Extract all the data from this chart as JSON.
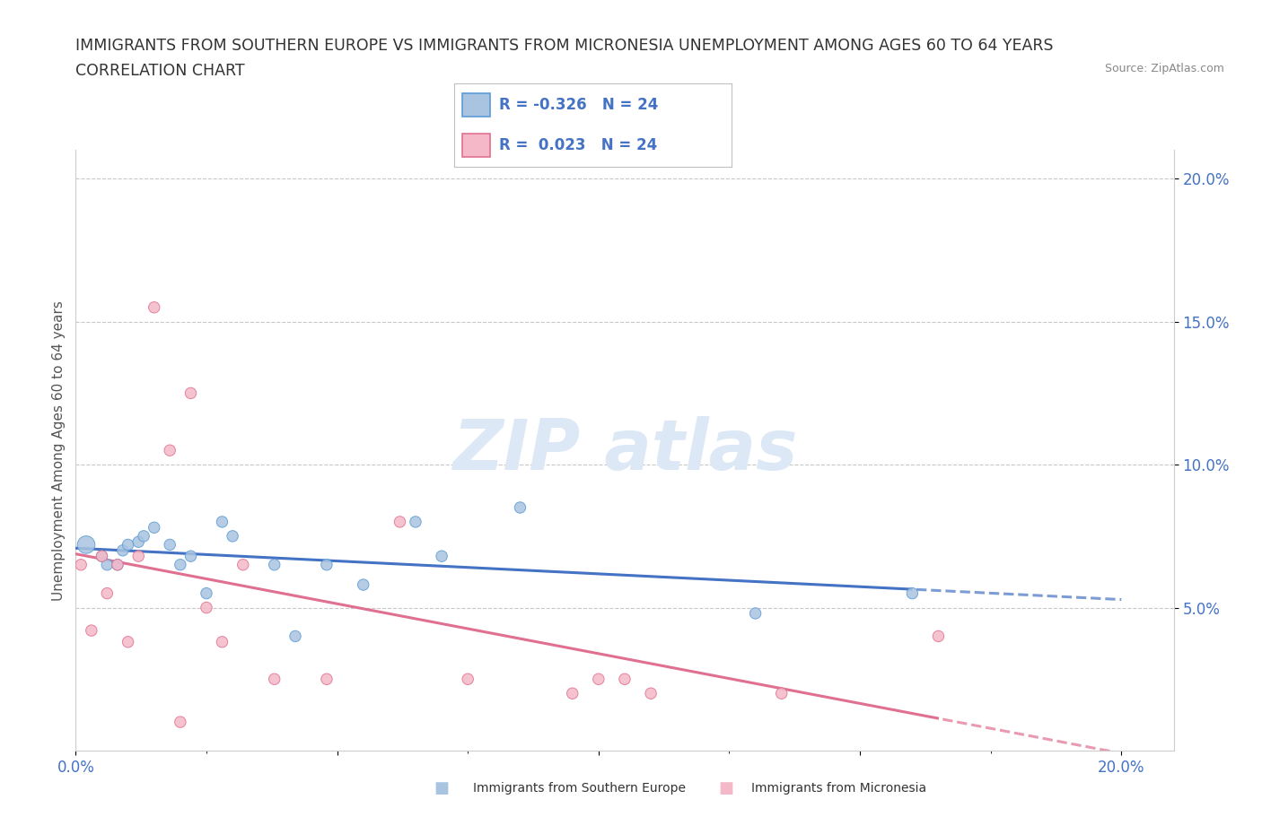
{
  "title_line1": "IMMIGRANTS FROM SOUTHERN EUROPE VS IMMIGRANTS FROM MICRONESIA UNEMPLOYMENT AMONG AGES 60 TO 64 YEARS",
  "title_line2": "CORRELATION CHART",
  "source_text": "Source: ZipAtlas.com",
  "ylabel": "Unemployment Among Ages 60 to 64 years",
  "xlim": [
    0.0,
    0.21
  ],
  "ylim": [
    0.0,
    0.21
  ],
  "xtick_vals": [
    0.0,
    0.05,
    0.1,
    0.15,
    0.2
  ],
  "xtick_labels": [
    "0.0%",
    "",
    "",
    "",
    "20.0%"
  ],
  "ytick_vals": [
    0.05,
    0.1,
    0.15,
    0.2
  ],
  "ytick_labels": [
    "5.0%",
    "10.0%",
    "15.0%",
    "20.0%"
  ],
  "blue_r": -0.326,
  "blue_n": 24,
  "pink_r": 0.023,
  "pink_n": 24,
  "blue_scatter_color": "#a8c4e0",
  "blue_edge_color": "#5b9bd5",
  "pink_scatter_color": "#f4b8c8",
  "pink_edge_color": "#e07090",
  "blue_line_color": "#4472c4",
  "pink_line_color": "#e07090",
  "tick_color": "#4472c4",
  "grid_color": "#c8c8c8",
  "background_color": "#ffffff",
  "watermark_color": "#dce8f5",
  "blue_scatter_x": [
    0.002,
    0.005,
    0.006,
    0.008,
    0.009,
    0.01,
    0.012,
    0.013,
    0.015,
    0.018,
    0.02,
    0.022,
    0.025,
    0.028,
    0.03,
    0.038,
    0.042,
    0.048,
    0.055,
    0.065,
    0.07,
    0.085,
    0.13,
    0.16
  ],
  "blue_scatter_y": [
    0.072,
    0.068,
    0.065,
    0.065,
    0.07,
    0.072,
    0.073,
    0.075,
    0.078,
    0.072,
    0.065,
    0.068,
    0.055,
    0.08,
    0.075,
    0.065,
    0.04,
    0.065,
    0.058,
    0.08,
    0.068,
    0.085,
    0.048,
    0.055
  ],
  "blue_scatter_sizes": [
    200,
    80,
    80,
    80,
    80,
    80,
    80,
    80,
    80,
    80,
    80,
    80,
    80,
    80,
    80,
    80,
    80,
    80,
    80,
    80,
    80,
    80,
    80,
    80
  ],
  "pink_scatter_x": [
    0.001,
    0.003,
    0.005,
    0.006,
    0.008,
    0.01,
    0.012,
    0.015,
    0.018,
    0.02,
    0.022,
    0.025,
    0.028,
    0.032,
    0.038,
    0.048,
    0.062,
    0.075,
    0.095,
    0.1,
    0.105,
    0.11,
    0.135,
    0.165
  ],
  "pink_scatter_y": [
    0.065,
    0.042,
    0.068,
    0.055,
    0.065,
    0.038,
    0.068,
    0.155,
    0.105,
    0.01,
    0.125,
    0.05,
    0.038,
    0.065,
    0.025,
    0.025,
    0.08,
    0.025,
    0.02,
    0.025,
    0.025,
    0.02,
    0.02,
    0.04
  ],
  "pink_scatter_sizes": [
    80,
    80,
    80,
    80,
    80,
    80,
    80,
    80,
    80,
    80,
    80,
    80,
    80,
    80,
    80,
    80,
    80,
    80,
    80,
    80,
    80,
    80,
    80,
    80
  ],
  "blue_trendline_x0": 0.0,
  "blue_trendline_x1": 0.2,
  "pink_trendline_x0": 0.0,
  "pink_trendline_x1": 0.2,
  "legend_blue_label": "R = -0.326   N = 24",
  "legend_pink_label": "R =  0.023   N = 24",
  "bottom_legend_blue": "Immigrants from Southern Europe",
  "bottom_legend_pink": "Immigrants from Micronesia",
  "title_fontsize": 12.5,
  "tick_fontsize": 12,
  "legend_fontsize": 12,
  "ylabel_fontsize": 11
}
